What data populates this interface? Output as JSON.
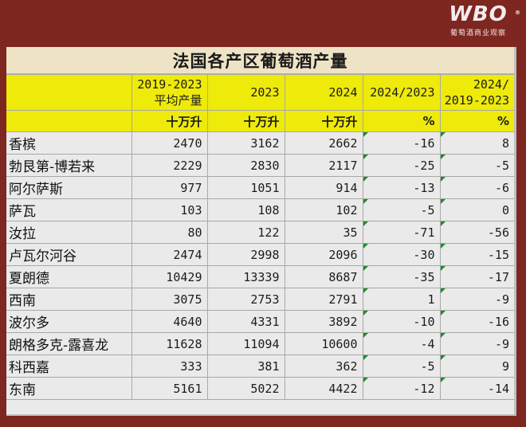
{
  "logo": {
    "mark": "WBO",
    "registered": "®",
    "subtitle": "葡萄酒商业观察"
  },
  "table": {
    "title": "法国各产区葡萄酒产量",
    "headers": [
      {
        "line1": "",
        "line2": ""
      },
      {
        "line1": "2019-2023",
        "line2": "平均产量"
      },
      {
        "line1": "",
        "line2": "2023"
      },
      {
        "line1": "",
        "line2": "2024"
      },
      {
        "line1": "",
        "line2": "2024/2023"
      },
      {
        "line1": "2024/",
        "line2": "2019-2023"
      }
    ],
    "units": [
      "",
      "十万升",
      "十万升",
      "十万升",
      "%",
      "%"
    ],
    "rows": [
      {
        "region": "香槟",
        "avg_2019_2023": "2470",
        "y2023": "3162",
        "y2024": "2662",
        "pct_vs_2023": "-16",
        "pct_vs_avg": "8"
      },
      {
        "region": "勃艮第-博若来",
        "avg_2019_2023": "2229",
        "y2023": "2830",
        "y2024": "2117",
        "pct_vs_2023": "-25",
        "pct_vs_avg": "-5"
      },
      {
        "region": "阿尔萨斯",
        "avg_2019_2023": "977",
        "y2023": "1051",
        "y2024": "914",
        "pct_vs_2023": "-13",
        "pct_vs_avg": "-6"
      },
      {
        "region": "萨瓦",
        "avg_2019_2023": "103",
        "y2023": "108",
        "y2024": "102",
        "pct_vs_2023": "-5",
        "pct_vs_avg": "0"
      },
      {
        "region": "汝拉",
        "avg_2019_2023": "80",
        "y2023": "122",
        "y2024": "35",
        "pct_vs_2023": "-71",
        "pct_vs_avg": "-56"
      },
      {
        "region": "卢瓦尔河谷",
        "avg_2019_2023": "2474",
        "y2023": "2998",
        "y2024": "2096",
        "pct_vs_2023": "-30",
        "pct_vs_avg": "-15"
      },
      {
        "region": "夏朗德",
        "avg_2019_2023": "10429",
        "y2023": "13339",
        "y2024": "8687",
        "pct_vs_2023": "-35",
        "pct_vs_avg": "-17"
      },
      {
        "region": "西南",
        "avg_2019_2023": "3075",
        "y2023": "2753",
        "y2024": "2791",
        "pct_vs_2023": "1",
        "pct_vs_avg": "-9"
      },
      {
        "region": "波尔多",
        "avg_2019_2023": "4640",
        "y2023": "4331",
        "y2024": "3892",
        "pct_vs_2023": "-10",
        "pct_vs_avg": "-16"
      },
      {
        "region": "朗格多克-露喜龙",
        "avg_2019_2023": "11628",
        "y2023": "11094",
        "y2024": "10600",
        "pct_vs_2023": "-4",
        "pct_vs_avg": "-9"
      },
      {
        "region": "科西嘉",
        "avg_2019_2023": "333",
        "y2023": "381",
        "y2024": "362",
        "pct_vs_2023": "-5",
        "pct_vs_avg": "9"
      },
      {
        "region": "东南",
        "avg_2019_2023": "5161",
        "y2023": "5022",
        "y2024": "4422",
        "pct_vs_2023": "-12",
        "pct_vs_avg": "-14"
      }
    ]
  },
  "colors": {
    "background": "#7e2620",
    "title_band": "#efe3c6",
    "header_yellow": "#eeea0a",
    "cell_bg": "#eaeaea",
    "flag_green": "#1f8a2a"
  }
}
